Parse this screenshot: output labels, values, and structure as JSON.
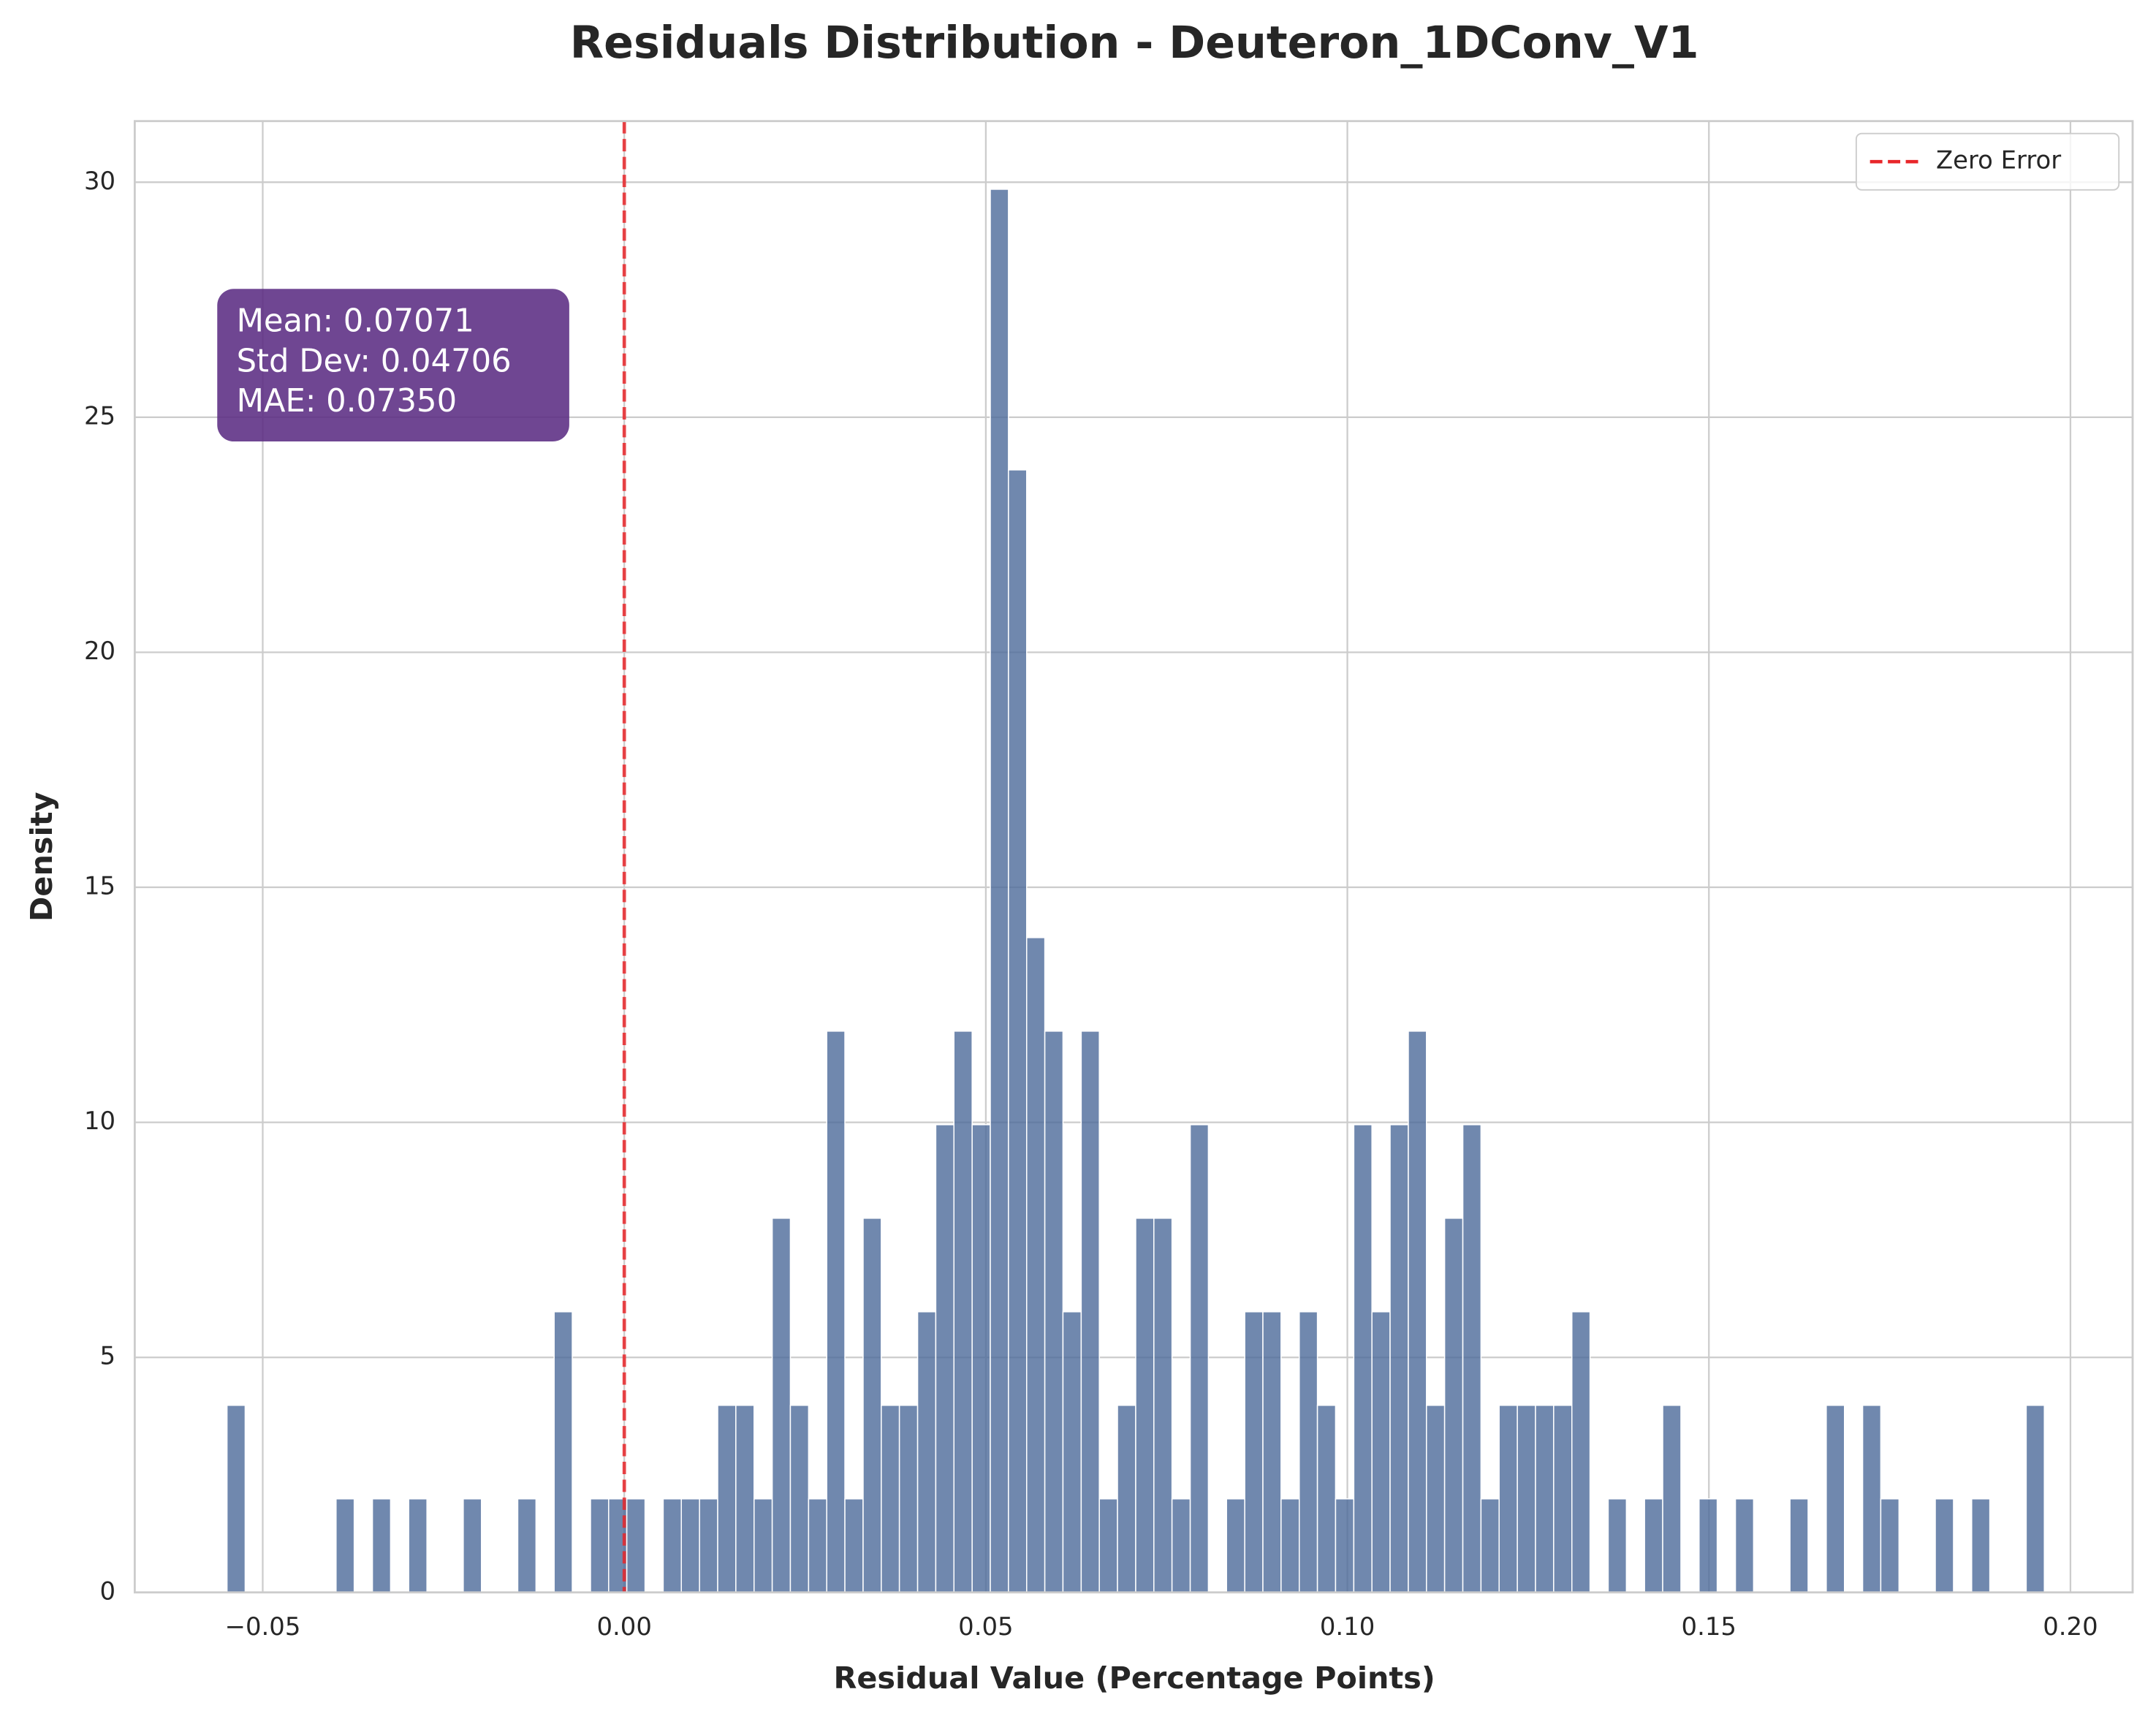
{
  "chart_data": {
    "type": "histogram",
    "title": "Residuals Distribution - Deuteron_1DConv_V1",
    "x_label": "Residual Value (Percentage Points)",
    "y_label": "Density",
    "bins": [
      -0.05494,
      -0.05243,
      -0.04991,
      -0.0474,
      -0.04489,
      -0.04237,
      -0.03986,
      -0.03735,
      -0.03483,
      -0.03232,
      -0.02981,
      -0.02729,
      -0.02478,
      -0.02227,
      -0.01975,
      -0.01724,
      -0.01473,
      -0.01221,
      -0.0097,
      -0.00719,
      -0.00467,
      -0.00216,
      0.00035,
      0.00287,
      0.00538,
      0.00789,
      0.01041,
      0.01292,
      0.01543,
      0.01795,
      0.02046,
      0.02297,
      0.02549,
      0.028,
      0.03051,
      0.03303,
      0.03554,
      0.03805,
      0.04057,
      0.04308,
      0.04559,
      0.04811,
      0.05062,
      0.05313,
      0.05565,
      0.05816,
      0.06067,
      0.06319,
      0.0657,
      0.06821,
      0.07073,
      0.07324,
      0.07575,
      0.07827,
      0.08078,
      0.08329,
      0.08581,
      0.08832,
      0.09083,
      0.09335,
      0.09586,
      0.09837,
      0.10089,
      0.1034,
      0.10591,
      0.10843,
      0.11094,
      0.11345,
      0.11597,
      0.11848,
      0.12099,
      0.12351,
      0.12602,
      0.12853,
      0.13105,
      0.13356,
      0.13607,
      0.13859,
      0.1411,
      0.14361,
      0.14613,
      0.14864,
      0.15115,
      0.15367,
      0.15618,
      0.15869,
      0.16121,
      0.16372,
      0.16623,
      0.16875,
      0.17126,
      0.17377,
      0.17629,
      0.1788,
      0.18131,
      0.18383,
      0.18634,
      0.18885,
      0.19137,
      0.19388,
      0.19639
    ],
    "values": [
      3.98,
      0,
      0,
      0,
      0,
      0,
      1.99,
      0,
      1.99,
      0,
      1.99,
      0,
      0,
      1.99,
      0,
      0,
      1.99,
      0,
      5.97,
      0,
      1.99,
      1.99,
      1.99,
      0,
      1.99,
      1.99,
      1.99,
      3.98,
      3.98,
      1.99,
      7.96,
      3.98,
      1.99,
      11.94,
      1.99,
      7.96,
      3.98,
      3.98,
      5.97,
      9.95,
      11.94,
      9.95,
      29.85,
      23.88,
      13.93,
      11.94,
      5.97,
      11.94,
      1.99,
      3.98,
      7.96,
      7.96,
      1.99,
      9.95,
      0,
      1.99,
      5.97,
      5.97,
      1.99,
      5.97,
      3.98,
      1.99,
      9.95,
      5.97,
      9.95,
      11.94,
      3.98,
      7.96,
      9.95,
      1.99,
      3.98,
      3.98,
      3.98,
      3.98,
      5.97,
      0,
      1.99,
      0,
      1.99,
      3.98,
      0,
      1.99,
      0,
      1.99,
      0,
      0,
      1.99,
      0,
      3.98,
      0,
      3.98,
      1.99,
      0,
      0,
      1.99,
      0,
      1.99,
      0,
      0,
      3.98
    ],
    "color": "#4c6a9a",
    "xlim": [
      -0.0677,
      0.2086
    ],
    "ylim": [
      0,
      31.3
    ],
    "xticks": [
      {
        "value": -0.05,
        "label": "−0.05"
      },
      {
        "value": 0,
        "label": "0.00"
      },
      0.05,
      {
        "value": 0.1,
        "label": "0.10"
      },
      0.15,
      {
        "value": 0.2,
        "label": "0.20"
      }
    ],
    "yticks": [
      0,
      5,
      10,
      15,
      20,
      25,
      30
    ],
    "grid": true,
    "vlines": [
      {
        "x": 0,
        "name": "Zero Error",
        "color": "#e8262a"
      }
    ],
    "legend_position": "upper right",
    "annotation": [
      "Mean: 0.07071",
      "Std Dev: 0.04706",
      "MAE: 0.07350"
    ]
  }
}
